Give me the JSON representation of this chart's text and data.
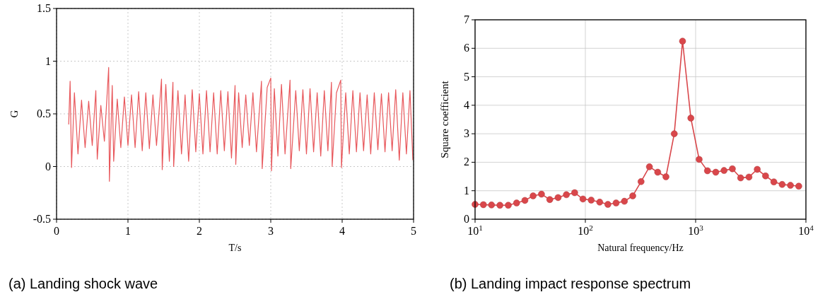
{
  "chart_data": [
    {
      "type": "line",
      "title": "(a) Landing shock wave",
      "xlabel": "T/s",
      "ylabel": "G",
      "xlim": [
        0,
        5
      ],
      "ylim": [
        -0.5,
        1.5
      ],
      "xticks": [
        0,
        1,
        2,
        3,
        4,
        5
      ],
      "yticks": [
        -0.5,
        0,
        0.5,
        1,
        1.5
      ],
      "grid": true,
      "marker": "none",
      "line_style": "solid",
      "x": [
        0.17,
        0.19,
        0.21,
        0.25,
        0.3,
        0.35,
        0.4,
        0.45,
        0.5,
        0.55,
        0.57,
        0.62,
        0.67,
        0.73,
        0.74,
        0.78,
        0.8,
        0.85,
        0.9,
        0.95,
        1.0,
        1.05,
        1.1,
        1.15,
        1.2,
        1.25,
        1.3,
        1.35,
        1.4,
        1.47,
        1.48,
        1.53,
        1.58,
        1.63,
        1.64,
        1.7,
        1.75,
        1.8,
        1.85,
        1.9,
        1.95,
        2.0,
        2.05,
        2.1,
        2.15,
        2.2,
        2.25,
        2.3,
        2.35,
        2.4,
        2.45,
        2.5,
        2.51,
        2.55,
        2.6,
        2.65,
        2.7,
        2.75,
        2.8,
        2.87,
        2.88,
        2.95,
        3.0,
        3.01,
        3.05,
        3.1,
        3.15,
        3.2,
        3.27,
        3.28,
        3.35,
        3.4,
        3.45,
        3.5,
        3.55,
        3.6,
        3.65,
        3.7,
        3.75,
        3.8,
        3.85,
        3.86,
        3.92,
        3.98,
        3.99,
        4.05,
        4.1,
        4.15,
        4.2,
        4.25,
        4.3,
        4.35,
        4.4,
        4.45,
        4.5,
        4.55,
        4.6,
        4.65,
        4.7,
        4.75,
        4.8,
        4.85,
        4.9,
        4.95,
        4.99
      ],
      "series": [
        {
          "color": "#e8585c",
          "values": [
            0.4,
            0.81,
            -0.01,
            0.7,
            0.12,
            0.63,
            0.18,
            0.62,
            0.2,
            0.72,
            0.07,
            0.58,
            0.24,
            0.94,
            -0.14,
            0.77,
            0.05,
            0.64,
            0.18,
            0.66,
            0.2,
            0.68,
            0.18,
            0.71,
            0.15,
            0.7,
            0.17,
            0.68,
            0.2,
            0.83,
            -0.03,
            0.78,
            0.05,
            0.8,
            0.0,
            0.72,
            0.12,
            0.68,
            0.05,
            0.73,
            0.14,
            0.69,
            0.12,
            0.72,
            0.14,
            0.7,
            0.12,
            0.72,
            0.15,
            0.71,
            0.08,
            0.77,
            0.02,
            0.7,
            0.18,
            0.68,
            0.2,
            0.7,
            0.14,
            0.81,
            -0.02,
            0.75,
            0.84,
            -0.04,
            0.74,
            0.1,
            0.78,
            0.12,
            0.82,
            -0.02,
            0.72,
            0.15,
            0.73,
            0.12,
            0.74,
            0.14,
            0.7,
            0.1,
            0.72,
            0.15,
            0.8,
            0.0,
            0.7,
            0.82,
            -0.01,
            0.7,
            0.12,
            0.72,
            0.14,
            0.7,
            0.15,
            0.68,
            0.12,
            0.7,
            0.16,
            0.69,
            0.14,
            0.7,
            0.15,
            0.73,
            0.06,
            0.7,
            0.12,
            0.72,
            0.06
          ]
        }
      ]
    },
    {
      "type": "line",
      "title": "(b) Landing impact response spectrum",
      "xlabel": "Natural frequency/Hz",
      "ylabel": "Square coefficient",
      "log": "x",
      "xlim": [
        10,
        10000
      ],
      "ylim": [
        0,
        7
      ],
      "xticks": [
        {
          "value": 10,
          "label": "10$^{1}$"
        },
        {
          "value": 100,
          "label": "10$^{2}$"
        },
        {
          "value": 1000,
          "label": "10$^{3}$"
        },
        {
          "value": 10000,
          "label": "10$^{4}$"
        }
      ],
      "yticks": [
        0,
        1,
        2,
        3,
        4,
        5,
        6,
        7
      ],
      "grid": true,
      "marker": "circle",
      "line_style": "solid",
      "x": [
        10,
        11.9,
        14.1,
        16.8,
        20,
        23.8,
        28.3,
        33.6,
        40,
        47.6,
        56.6,
        67.3,
        80,
        95.1,
        113,
        135,
        160,
        190,
        226,
        269,
        320,
        381,
        453,
        538,
        640,
        761,
        905,
        1076,
        1280,
        1522,
        1810,
        2153,
        2560,
        3044,
        3620,
        4305,
        5120,
        6089,
        7241,
        8611
      ],
      "series": [
        {
          "color": "#d9474b",
          "values": [
            0.52,
            0.51,
            0.5,
            0.49,
            0.49,
            0.57,
            0.66,
            0.82,
            0.88,
            0.69,
            0.76,
            0.86,
            0.93,
            0.71,
            0.67,
            0.6,
            0.52,
            0.57,
            0.63,
            0.82,
            1.32,
            1.84,
            1.65,
            1.49,
            3.0,
            6.25,
            3.55,
            2.1,
            1.7,
            1.65,
            1.71,
            1.77,
            1.45,
            1.48,
            1.75,
            1.52,
            1.31,
            1.22,
            1.19,
            1.16
          ]
        }
      ]
    }
  ]
}
